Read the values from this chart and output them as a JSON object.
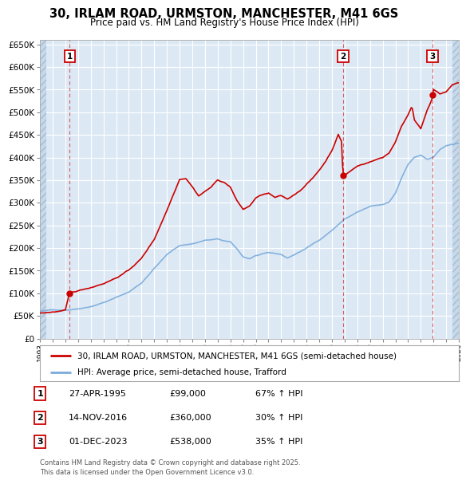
{
  "title": "30, IRLAM ROAD, URMSTON, MANCHESTER, M41 6GS",
  "subtitle": "Price paid vs. HM Land Registry's House Price Index (HPI)",
  "red_label": "30, IRLAM ROAD, URMSTON, MANCHESTER, M41 6GS (semi-detached house)",
  "blue_label": "HPI: Average price, semi-detached house, Trafford",
  "red_color": "#cc0000",
  "blue_color": "#7aabdb",
  "sale_points": [
    {
      "year": 1995.33,
      "price": 99000,
      "label": "1"
    },
    {
      "year": 2016.88,
      "price": 360000,
      "label": "2"
    },
    {
      "year": 2023.92,
      "price": 538000,
      "label": "3"
    }
  ],
  "table_rows": [
    {
      "num": "1",
      "date": "27-APR-1995",
      "price": "£99,000",
      "hpi": "67% ↑ HPI"
    },
    {
      "num": "2",
      "date": "14-NOV-2016",
      "price": "£360,000",
      "hpi": "30% ↑ HPI"
    },
    {
      "num": "3",
      "date": "01-DEC-2023",
      "price": "£538,000",
      "hpi": "35% ↑ HPI"
    }
  ],
  "footer": "Contains HM Land Registry data © Crown copyright and database right 2025.\nThis data is licensed under the Open Government Licence v3.0.",
  "ylim": [
    0,
    660000
  ],
  "yticks": [
    0,
    50000,
    100000,
    150000,
    200000,
    250000,
    300000,
    350000,
    400000,
    450000,
    500000,
    550000,
    600000,
    650000
  ],
  "xlim_start": 1993,
  "xlim_end": 2026,
  "bg_color": "#dce9f5",
  "hatch_color": "#c5d9ec"
}
